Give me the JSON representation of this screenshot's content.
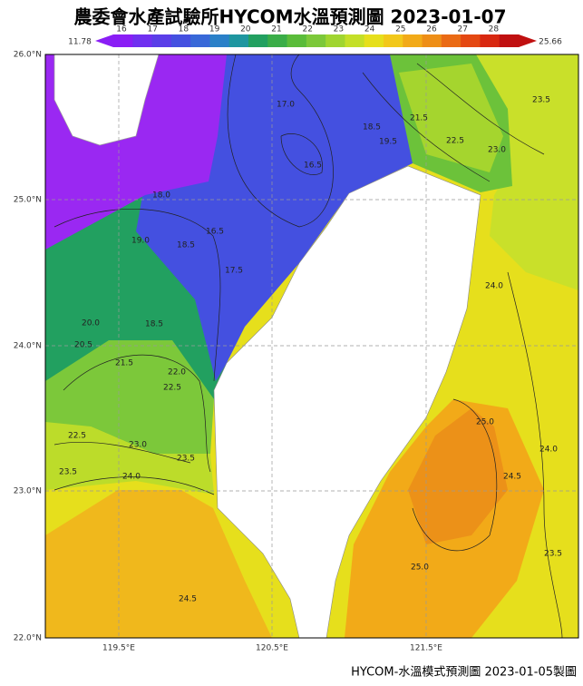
{
  "title": "農委會水產試驗所HYCOM水溫預測圖 2023-01-07",
  "colorbar": {
    "min_label": "11.78",
    "max_label": "25.66",
    "ticks": [
      "16",
      "17",
      "18",
      "19",
      "20",
      "21",
      "22",
      "23",
      "24",
      "25",
      "26",
      "27",
      "28"
    ]
  },
  "axes": {
    "lat_labels": [
      "26.0°N",
      "25.0°N",
      "24.0°N",
      "23.0°N",
      "22.0°N"
    ],
    "lon_labels": [
      "119.5°E",
      "120.5°E",
      "121.5°E"
    ]
  },
  "contour_labels": [
    "17.0",
    "16.5",
    "18.5",
    "19.5",
    "21.5",
    "22.5",
    "23.0",
    "23.5",
    "18.0",
    "19.0",
    "18.5",
    "16.5",
    "17.5",
    "20.0",
    "18.5",
    "21.5",
    "20.5",
    "22.0",
    "22.5",
    "22.5",
    "23.0",
    "23.5",
    "24.0",
    "23.5",
    "24.0",
    "25.0",
    "24.0",
    "24.5",
    "23.5",
    "25.0",
    "24.5"
  ],
  "footer": "HYCOM-水溫模式預測圖 2023-01-05製圖"
}
